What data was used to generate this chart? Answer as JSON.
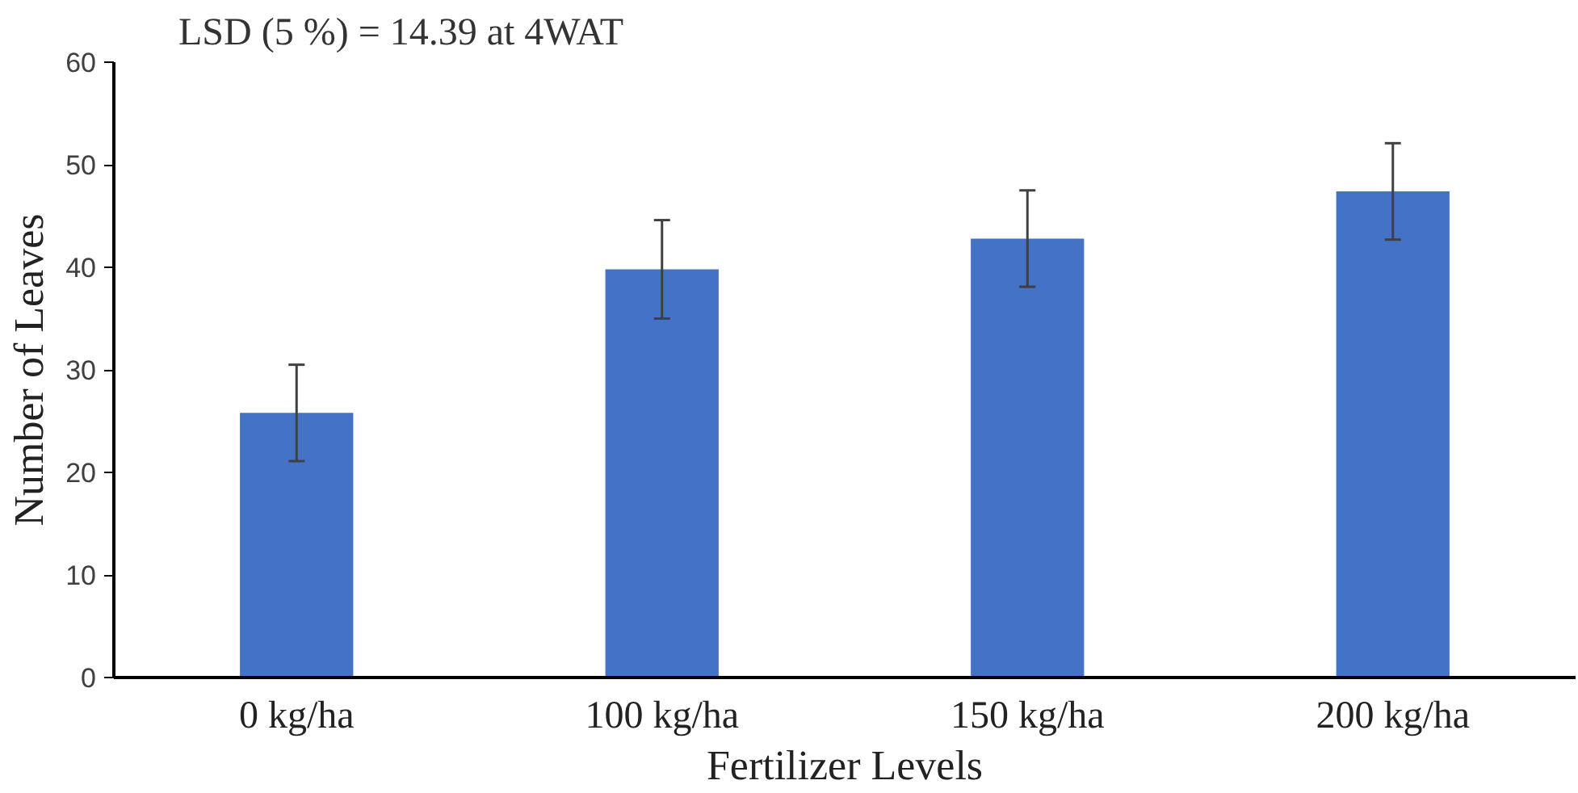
{
  "chart_data": {
    "type": "bar",
    "title": "LSD (5 %) = 14.39 at 4WAT",
    "xlabel": "Fertilizer Levels",
    "ylabel": "Number of Leaves",
    "categories": [
      "0 kg/ha",
      "100 kg/ha",
      "150 kg/ha",
      "200 kg/ha"
    ],
    "values": [
      25.8,
      39.8,
      42.8,
      47.4
    ],
    "errors": [
      4.7,
      4.8,
      4.7,
      4.7
    ],
    "color": "#4472c4",
    "ylim": [
      0,
      60
    ],
    "yticks": [
      0,
      10,
      20,
      30,
      40,
      50,
      60
    ],
    "grid": false
  }
}
